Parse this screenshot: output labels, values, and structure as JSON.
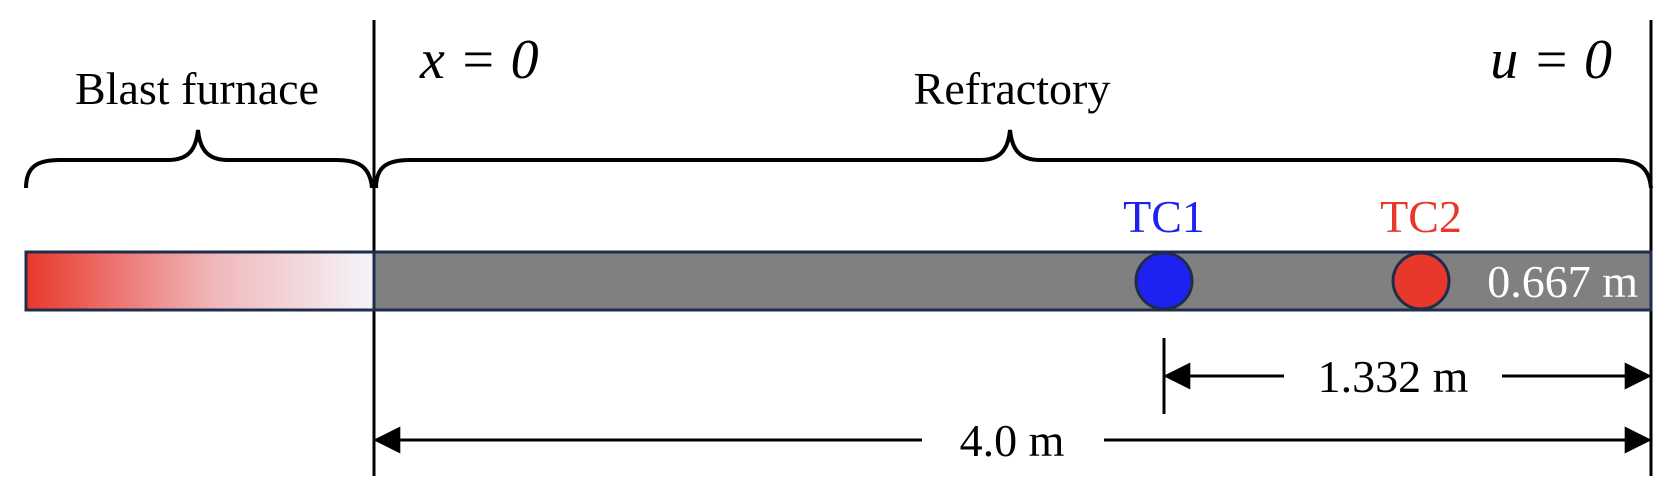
{
  "labels": {
    "blast_furnace": "Blast furnace",
    "refractory": "Refractory",
    "x_boundary": "x = 0",
    "u_boundary": "u = 0"
  },
  "thermocouples": [
    {
      "name": "TC1",
      "color": "#1d22f2"
    },
    {
      "name": "TC2",
      "color": "#e8382b"
    }
  ],
  "dimensions": {
    "tc2_distance": "0.667 m",
    "tc1_distance": "1.332 m",
    "total_length": "4.0 m"
  },
  "colors": {
    "refractory_fill": "#808080",
    "bar_border": "#1f2d4d",
    "furnace_gradient_start": "#e8382b",
    "furnace_gradient_end": "#f4f4f8"
  }
}
